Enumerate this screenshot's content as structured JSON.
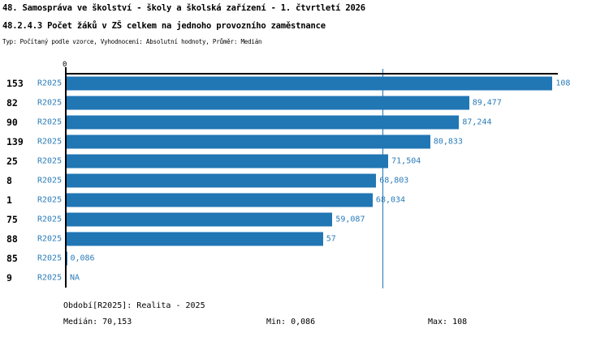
{
  "title": {
    "line1": "48. Samospráva ve školství - školy a školská zařízení - 1. čtvrtletí 2026",
    "line2": "48.2.4.3 Počet žáků v ZŠ celkem na jednoho provozního zaměstnance",
    "line3": "Typ: Počítaný podle vzorce, Vyhodnocení: Absolutní hodnoty, Průměr: Medián"
  },
  "colors": {
    "bar": "#2176b4",
    "text_blue": "#2b7cb9",
    "axis_black": "#000000",
    "median_line": "#2176b4"
  },
  "chart_data": {
    "type": "bar",
    "orientation": "horizontal",
    "title": "48.2.4.3 Počet žáků v ZŠ celkem na jednoho provozního zaměstnance",
    "xlabel": "",
    "ylabel": "",
    "xlim": [
      0,
      109.2
    ],
    "grid": false,
    "legend": false,
    "axis": {
      "origin_label": "0"
    },
    "series_name": "R2025",
    "median_value": 70.153,
    "stats": {
      "median": 70.153,
      "min": 0.086,
      "max": 108
    },
    "rows": [
      {
        "org": "153",
        "period": "R2025",
        "value": 108,
        "label": "108"
      },
      {
        "org": "82",
        "period": "R2025",
        "value": 89.477,
        "label": "89,477"
      },
      {
        "org": "90",
        "period": "R2025",
        "value": 87.244,
        "label": "87,244"
      },
      {
        "org": "139",
        "period": "R2025",
        "value": 80.833,
        "label": "80,833"
      },
      {
        "org": "25",
        "period": "R2025",
        "value": 71.504,
        "label": "71,504"
      },
      {
        "org": "8",
        "period": "R2025",
        "value": 68.803,
        "label": "68,803"
      },
      {
        "org": "1",
        "period": "R2025",
        "value": 68.034,
        "label": "68,034"
      },
      {
        "org": "75",
        "period": "R2025",
        "value": 59.087,
        "label": "59,087"
      },
      {
        "org": "88",
        "period": "R2025",
        "value": 57,
        "label": "57"
      },
      {
        "org": "85",
        "period": "R2025",
        "value": 0.086,
        "label": "0,086"
      },
      {
        "org": "9",
        "period": "R2025",
        "value": null,
        "label": "NA"
      }
    ]
  },
  "footer": {
    "period_line": "Období[R2025]: Realita - 2025",
    "median": "Medián: 70,153",
    "min": "Min: 0,086",
    "max": "Max: 108"
  }
}
